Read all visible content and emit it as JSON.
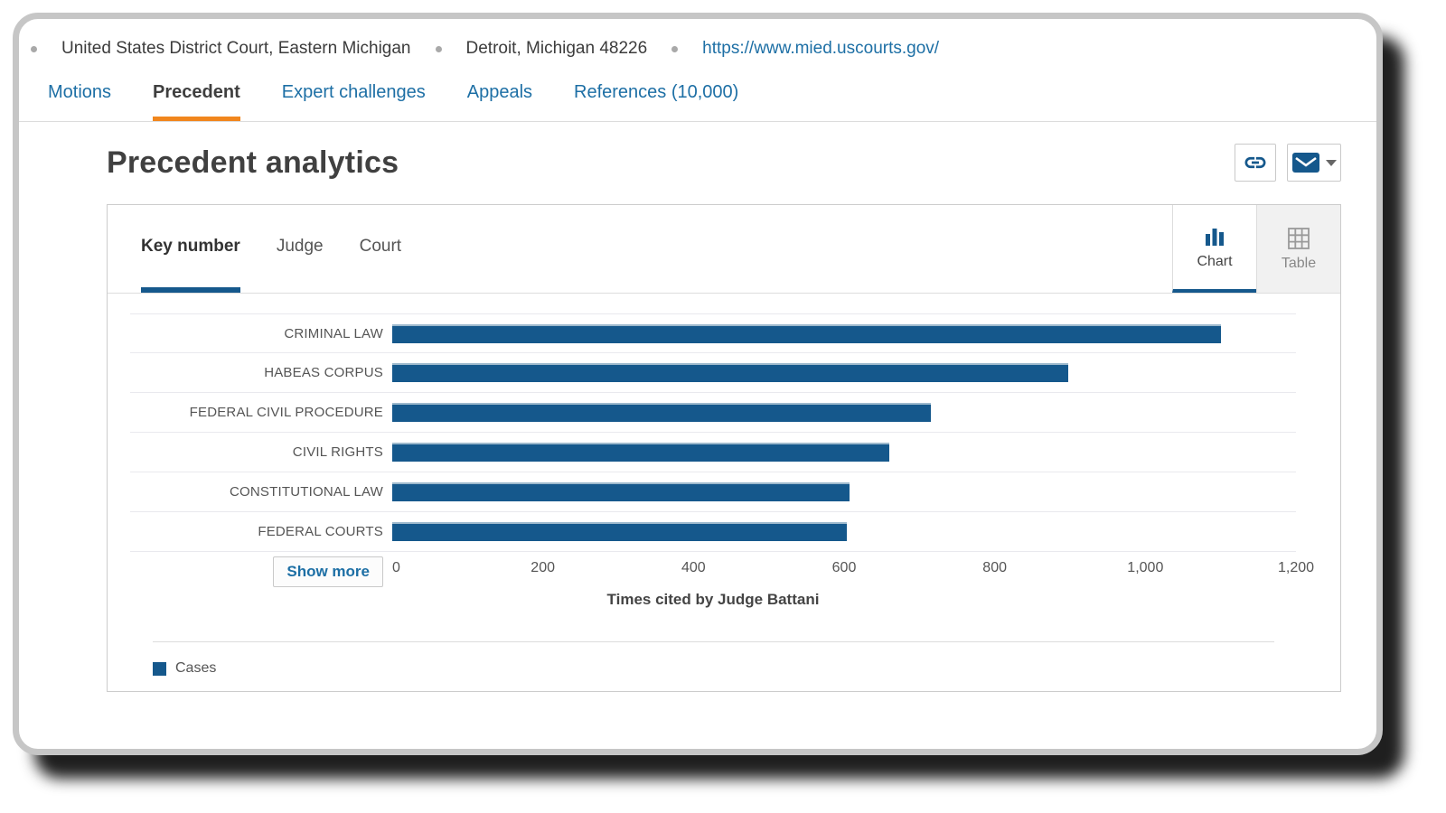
{
  "header": {
    "court": "United States District Court, Eastern Michigan",
    "address": "Detroit, Michigan 48226",
    "url": "https://www.mied.uscourts.gov/"
  },
  "nav": {
    "tabs": [
      {
        "label": "Motions",
        "active": false
      },
      {
        "label": "Precedent",
        "active": true
      },
      {
        "label": "Expert challenges",
        "active": false
      },
      {
        "label": "Appeals",
        "active": false
      },
      {
        "label": "References (10,000)",
        "active": false
      }
    ]
  },
  "page_title": "Precedent analytics",
  "toolbar": {
    "buttons": [
      {
        "icon": "link-icon"
      },
      {
        "icon": "envelope-icon",
        "has_dropdown": true
      }
    ]
  },
  "card": {
    "tabs": [
      {
        "label": "Key number",
        "active": true
      },
      {
        "label": "Judge",
        "active": false
      },
      {
        "label": "Court",
        "active": false
      }
    ],
    "view_toggle": [
      {
        "label": "Chart",
        "icon": "bar-chart-icon",
        "active": true
      },
      {
        "label": "Table",
        "icon": "table-grid-icon",
        "active": false
      }
    ],
    "show_more_label": "Show more",
    "legend": {
      "label": "Cases",
      "color": "#15588c"
    }
  },
  "chart_data": {
    "type": "bar",
    "orientation": "horizontal",
    "categories": [
      "CRIMINAL LAW",
      "HABEAS CORPUS",
      "FEDERAL CIVIL PROCEDURE",
      "CIVIL RIGHTS",
      "CONSTITUTIONAL LAW",
      "FEDERAL COURTS"
    ],
    "values": [
      1100,
      898,
      715,
      660,
      607,
      604
    ],
    "series_name": "Cases",
    "xlabel": "Times cited by Judge Battani",
    "xlim": [
      0,
      1200
    ],
    "xticks": [
      0,
      200,
      400,
      600,
      800,
      1000,
      1200
    ],
    "xtick_labels": [
      "0",
      "200",
      "400",
      "600",
      "800",
      "1,000",
      "1,200"
    ],
    "bar_color": "#15588c",
    "grid": false,
    "legend_position": "bottom-left"
  },
  "colors": {
    "accent_blue": "#15588c",
    "link_blue": "#1d6fa5",
    "active_tab_orange": "#f1861d",
    "title_text": "#404040",
    "muted_text": "#555555"
  }
}
